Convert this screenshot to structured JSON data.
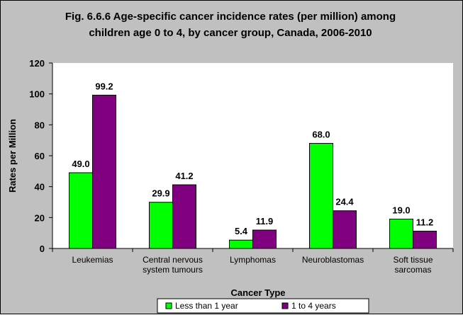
{
  "chart_data": {
    "type": "bar",
    "title": "Fig. 6.6.6 Age-specific cancer incidence rates (per million) among children age 0 to 4, by cancer group, Canada, 2006-2010",
    "title_lines": [
      "Fig. 6.6.6 Age-specific cancer incidence rates (per million) among",
      "children age 0 to 4, by cancer group, Canada, 2006-2010"
    ],
    "xlabel": "Cancer Type",
    "ylabel": "Rates per Million",
    "ylim": [
      0,
      120
    ],
    "yticks": [
      0,
      20,
      40,
      60,
      80,
      100,
      120
    ],
    "categories": [
      "Leukemias",
      "Central nervous system tumours",
      "Lymphomas",
      "Neuroblastomas",
      "Soft tissue sarcomas"
    ],
    "category_lines": [
      [
        "Leukemias"
      ],
      [
        "Central nervous",
        "system tumours"
      ],
      [
        "Lymphomas"
      ],
      [
        "Neuroblastomas"
      ],
      [
        "Soft tissue",
        "sarcomas"
      ]
    ],
    "series": [
      {
        "name": "Less than 1 year",
        "color": "#00ff00",
        "values": [
          49.0,
          29.9,
          5.4,
          68.0,
          19.0
        ]
      },
      {
        "name": "1 to 4 years",
        "color": "#800080",
        "values": [
          99.2,
          41.2,
          11.9,
          24.4,
          11.2
        ]
      }
    ],
    "legend_position": "bottom"
  }
}
